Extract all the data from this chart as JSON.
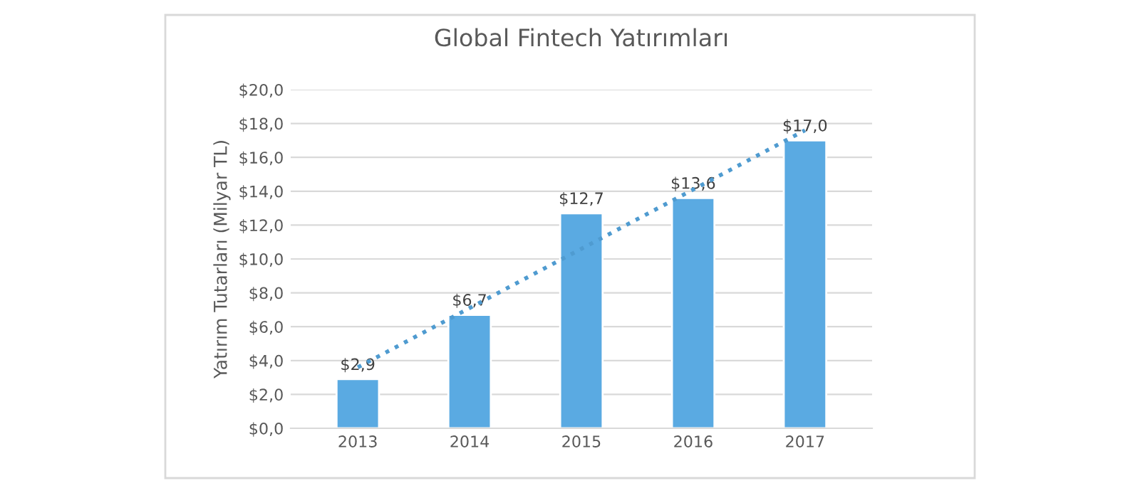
{
  "chart_data": {
    "type": "bar",
    "title": "Global Fintech Yatırımları",
    "ylabel": "Yatırım Tutarları (Milyar TL)",
    "categories": [
      "2013",
      "2014",
      "2015",
      "2016",
      "2017"
    ],
    "series": [
      {
        "color": "#5aaae2",
        "values": [
          2.9,
          6.7,
          12.7,
          13.6,
          17.0
        ],
        "value_labels": [
          "$2,9",
          "$6,7",
          "$12,7",
          "$13,6",
          "$17,0"
        ]
      },
      {
        "type": "line",
        "color": "#4f9bd0",
        "line_style": "dotted",
        "values": [
          3.6,
          7.1,
          10.6,
          14.1,
          17.6
        ]
      }
    ],
    "ylim": [
      0,
      20
    ],
    "yticks": [
      {
        "value": 0,
        "label": "$0,0"
      },
      {
        "value": 2,
        "label": "$2,0"
      },
      {
        "value": 4,
        "label": "$4,0"
      },
      {
        "value": 6,
        "label": "$6,0"
      },
      {
        "value": 8,
        "label": "$8,0"
      },
      {
        "value": 10,
        "label": "$10,0"
      },
      {
        "value": 12,
        "label": "$12,0"
      },
      {
        "value": 14,
        "label": "$14,0"
      },
      {
        "value": 16,
        "label": "$16,0"
      },
      {
        "value": 18,
        "label": "$18,0"
      },
      {
        "value": 20,
        "label": "$20,0"
      }
    ],
    "grid": "y",
    "legend": false
  }
}
